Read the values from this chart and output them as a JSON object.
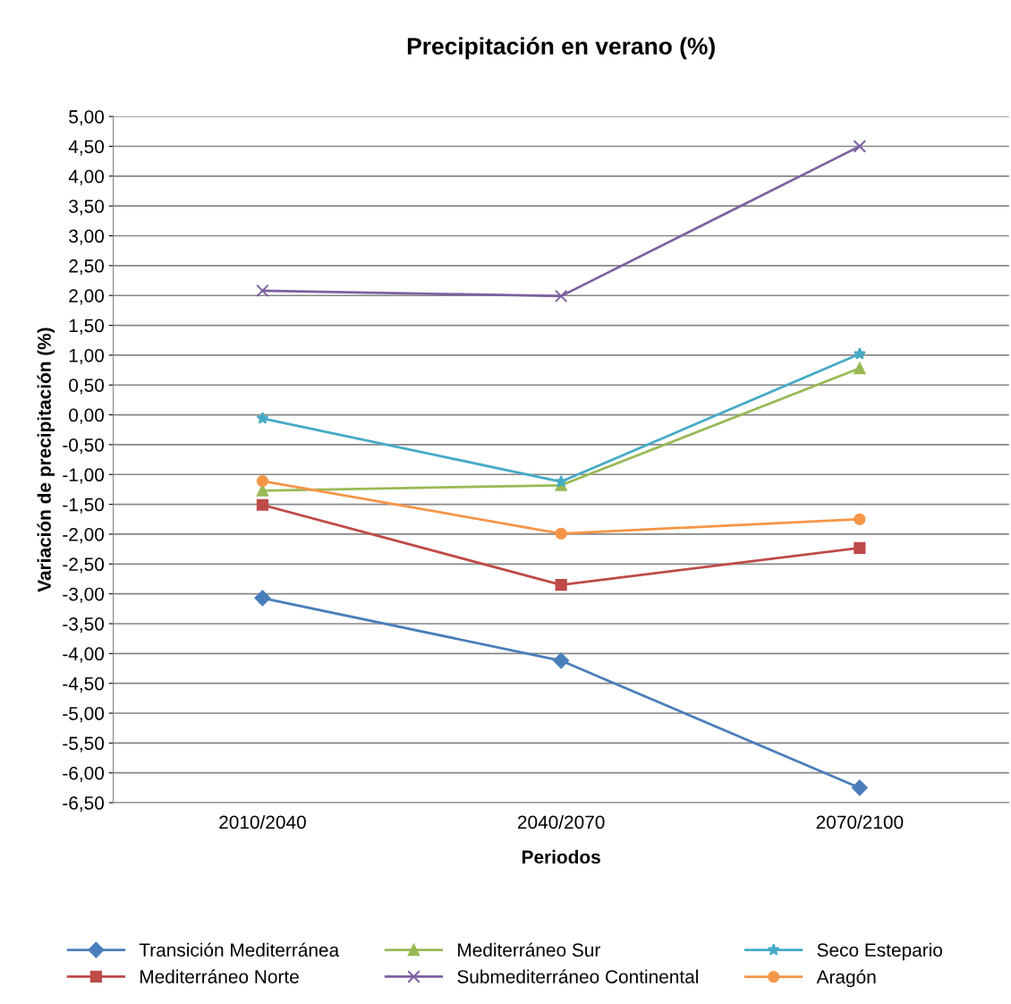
{
  "chart_data": {
    "type": "line",
    "title": "Precipitación en verano (%)",
    "xlabel": "Periodos",
    "ylabel": "Variación de precipitación (%)",
    "categories": [
      "2010/2040",
      "2040/2070",
      "2070/2100"
    ],
    "series": [
      {
        "name": "Transición Mediterránea",
        "color": "#4a7ebb",
        "marker": "diamond",
        "values": [
          -3.07,
          -4.12,
          -6.25
        ]
      },
      {
        "name": "Mediterráneo Norte",
        "color": "#be4b48",
        "marker": "square",
        "values": [
          -1.51,
          -2.85,
          -2.23
        ]
      },
      {
        "name": "Mediterráneo Sur",
        "color": "#98b954",
        "marker": "triangle",
        "values": [
          -1.27,
          -1.18,
          0.78
        ]
      },
      {
        "name": "Submediterráneo Continental",
        "color": "#7d60a0",
        "marker": "cross",
        "values": [
          2.08,
          1.99,
          4.5
        ]
      },
      {
        "name": "Seco Estepario",
        "color": "#46aac5",
        "marker": "star",
        "values": [
          -0.06,
          -1.12,
          1.02
        ]
      },
      {
        "name": "Aragón",
        "color": "#f69546",
        "marker": "circle",
        "values": [
          -1.11,
          -1.99,
          -1.75
        ]
      }
    ],
    "ylim": [
      -6.5,
      5
    ],
    "yticks": [
      {
        "value": -6.5,
        "label": "-6,50"
      },
      {
        "value": -6,
        "label": "-6,00"
      },
      {
        "value": -5.5,
        "label": "-5,50"
      },
      {
        "value": -5,
        "label": "-5,00"
      },
      {
        "value": -4.5,
        "label": "-4,50"
      },
      {
        "value": -4,
        "label": "-4,00"
      },
      {
        "value": -3.5,
        "label": "-3,50"
      },
      {
        "value": -3,
        "label": "-3,00"
      },
      {
        "value": -2.5,
        "label": "-2,50"
      },
      {
        "value": -2,
        "label": "-2,00"
      },
      {
        "value": -1.5,
        "label": "-1,50"
      },
      {
        "value": -1,
        "label": "-1,00"
      },
      {
        "value": -0.5,
        "label": "-0,50"
      },
      {
        "value": 0,
        "label": "0,00"
      },
      {
        "value": 0.5,
        "label": "0,50"
      },
      {
        "value": 1,
        "label": "1,00"
      },
      {
        "value": 1.5,
        "label": "1,50"
      },
      {
        "value": 2,
        "label": "2,00"
      },
      {
        "value": 2.5,
        "label": "2,50"
      },
      {
        "value": 3,
        "label": "3,00"
      },
      {
        "value": 3.5,
        "label": "3,50"
      },
      {
        "value": 4,
        "label": "4,00"
      },
      {
        "value": 4.5,
        "label": "4,50"
      },
      {
        "value": 5,
        "label": "5,00"
      }
    ],
    "grid": "y",
    "legend": "bottom",
    "line_style": "solid"
  }
}
